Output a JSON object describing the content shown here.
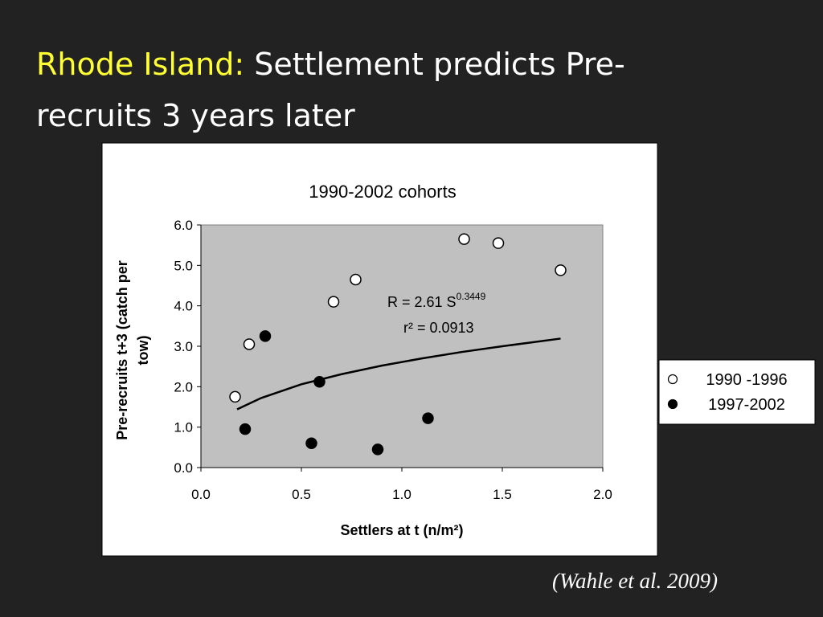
{
  "slide": {
    "title_lead": "Rhode Island:",
    "title": "Settlement predicts Pre-recruits 3 years later",
    "citation": "(Wahle et al. 2009)"
  },
  "chart_data": {
    "type": "scatter",
    "title": "1990-2002 cohorts",
    "xlabel": "Settlers at t (n/m²)",
    "ylabel": [
      "Pre-recruits t+3 (catch per",
      "tow)"
    ],
    "xlim": [
      0,
      2
    ],
    "ylim": [
      0,
      6
    ],
    "xticks": [
      {
        "value": 0,
        "label": "0.0"
      },
      0.5,
      {
        "value": 1,
        "label": "1.0"
      },
      1.5,
      {
        "value": 2,
        "label": "2.0"
      }
    ],
    "yticks": [
      {
        "value": 0,
        "label": "0.0"
      },
      {
        "value": 1,
        "label": "1.0"
      },
      {
        "value": 2,
        "label": "2.0"
      },
      {
        "value": 3,
        "label": "3.0"
      },
      {
        "value": 4,
        "label": "4.0"
      },
      {
        "value": 5,
        "label": "5.0"
      },
      {
        "value": 6,
        "label": "6.0"
      }
    ],
    "series": [
      {
        "name": "1990 -1996",
        "color": "#ffffff",
        "x": [
          0.17,
          0.24,
          0.66,
          0.77,
          1.31,
          1.48,
          1.79
        ],
        "values": [
          1.75,
          3.05,
          4.1,
          4.65,
          5.65,
          5.55,
          4.88
        ]
      },
      {
        "name": "1997-2002",
        "color": "#000000",
        "x": [
          0.22,
          0.32,
          0.55,
          0.59,
          0.88,
          1.13
        ],
        "values": [
          0.95,
          3.25,
          0.6,
          2.12,
          0.45,
          1.22
        ]
      }
    ],
    "trendline": {
      "x": [
        0.18,
        0.3,
        0.5,
        0.7,
        0.9,
        1.1,
        1.3,
        1.5,
        1.79
      ],
      "values": [
        1.44,
        1.72,
        2.06,
        2.31,
        2.52,
        2.7,
        2.86,
        3.0,
        3.19
      ]
    },
    "equation": {
      "text": "R = 2.61 S",
      "superscript": "0.3449"
    },
    "r_squared": "r² = 0.0913",
    "legend": "right",
    "plot_background": "#c0c0c0"
  }
}
